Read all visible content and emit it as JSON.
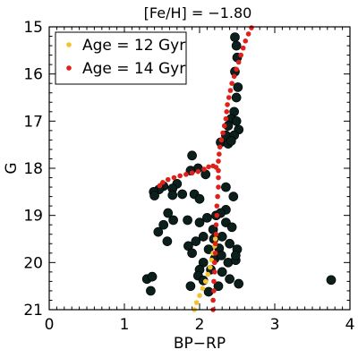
{
  "chart_data": {
    "type": "scatter",
    "title": "[Fe/H] = −1.80",
    "xlabel": "BP−RP",
    "ylabel": "G",
    "xlim": [
      0,
      4
    ],
    "ylim": [
      21,
      15
    ],
    "y_inverted": true,
    "xticks": [
      "0",
      "1",
      "2",
      "3",
      "4"
    ],
    "yticks": [
      "15",
      "16",
      "17",
      "18",
      "19",
      "20",
      "21"
    ],
    "legend": {
      "placement": "top-left",
      "entries": [
        {
          "label": "Age = 12 Gyr",
          "color": "#f2c230"
        },
        {
          "label": "Age = 14 Gyr",
          "color": "#e0201a"
        }
      ]
    },
    "series": [
      {
        "name": "Age = 12 Gyr",
        "kind": "isochrone",
        "color": "#f2c230",
        "points": [
          [
            1.93,
            21.0
          ],
          [
            1.96,
            20.85
          ],
          [
            2.0,
            20.7
          ],
          [
            2.04,
            20.55
          ],
          [
            2.08,
            20.4
          ],
          [
            2.11,
            20.25
          ],
          [
            2.14,
            20.1
          ],
          [
            2.16,
            19.95
          ],
          [
            2.18,
            19.8
          ],
          [
            2.2,
            19.65
          ],
          [
            2.21,
            19.5
          ]
        ]
      },
      {
        "name": "Age = 14 Gyr",
        "kind": "isochrone",
        "color": "#e0201a",
        "points": [
          [
            2.18,
            21.0
          ],
          [
            2.18,
            20.8
          ],
          [
            2.19,
            20.6
          ],
          [
            2.19,
            20.4
          ],
          [
            2.2,
            20.2
          ],
          [
            2.2,
            20.0
          ],
          [
            2.21,
            19.8
          ],
          [
            2.21,
            19.6
          ],
          [
            2.22,
            19.4
          ],
          [
            2.22,
            19.2
          ],
          [
            2.23,
            19.0
          ],
          [
            2.23,
            18.8
          ],
          [
            2.24,
            18.6
          ],
          [
            2.25,
            18.4
          ],
          [
            2.25,
            18.2
          ],
          [
            2.25,
            18.05
          ],
          [
            2.22,
            17.98
          ],
          [
            2.18,
            17.95
          ],
          [
            2.12,
            17.97
          ],
          [
            2.06,
            18.02
          ],
          [
            1.98,
            18.07
          ],
          [
            1.9,
            18.1
          ],
          [
            1.82,
            18.13
          ],
          [
            1.74,
            18.16
          ],
          [
            1.66,
            18.2
          ],
          [
            1.58,
            18.24
          ],
          [
            1.51,
            18.3
          ],
          [
            1.47,
            18.37
          ],
          [
            2.25,
            17.85
          ],
          [
            2.26,
            17.7
          ],
          [
            2.27,
            17.55
          ],
          [
            2.29,
            17.4
          ],
          [
            2.31,
            17.25
          ],
          [
            2.33,
            17.1
          ],
          [
            2.35,
            16.95
          ],
          [
            2.36,
            16.8
          ],
          [
            2.37,
            16.65
          ],
          [
            2.39,
            16.5
          ],
          [
            2.41,
            16.35
          ],
          [
            2.43,
            16.2
          ],
          [
            2.46,
            16.05
          ],
          [
            2.49,
            15.9
          ],
          [
            2.52,
            15.75
          ],
          [
            2.55,
            15.6
          ],
          [
            2.58,
            15.45
          ],
          [
            2.61,
            15.3
          ],
          [
            2.65,
            15.15
          ],
          [
            2.69,
            15.02
          ]
        ]
      },
      {
        "name": "",
        "kind": "stars",
        "color": "#0b1f1d",
        "points": [
          [
            2.47,
            15.22
          ],
          [
            2.49,
            15.4
          ],
          [
            2.5,
            15.65
          ],
          [
            2.47,
            15.95
          ],
          [
            2.51,
            16.28
          ],
          [
            2.49,
            16.5
          ],
          [
            2.46,
            16.8
          ],
          [
            2.42,
            16.95
          ],
          [
            2.49,
            17.0
          ],
          [
            2.38,
            17.1
          ],
          [
            2.52,
            17.18
          ],
          [
            2.35,
            17.3
          ],
          [
            2.46,
            17.3
          ],
          [
            2.28,
            17.45
          ],
          [
            2.38,
            17.48
          ],
          [
            2.42,
            17.42
          ],
          [
            1.9,
            17.73
          ],
          [
            1.98,
            18.0
          ],
          [
            1.88,
            18.05
          ],
          [
            2.08,
            18.13
          ],
          [
            1.7,
            18.33
          ],
          [
            1.64,
            18.43
          ],
          [
            1.52,
            18.38
          ],
          [
            1.46,
            18.45
          ],
          [
            1.39,
            18.5
          ],
          [
            1.4,
            18.58
          ],
          [
            1.64,
            18.57
          ],
          [
            1.77,
            18.55
          ],
          [
            1.93,
            18.55
          ],
          [
            2.0,
            18.65
          ],
          [
            2.35,
            18.4
          ],
          [
            2.45,
            18.6
          ],
          [
            2.35,
            18.88
          ],
          [
            2.22,
            19.0
          ],
          [
            2.28,
            18.95
          ],
          [
            1.58,
            18.95
          ],
          [
            1.65,
            19.1
          ],
          [
            1.52,
            19.2
          ],
          [
            1.45,
            19.35
          ],
          [
            1.57,
            19.55
          ],
          [
            1.84,
            19.1
          ],
          [
            2.0,
            19.15
          ],
          [
            2.1,
            19.05
          ],
          [
            2.18,
            19.3
          ],
          [
            2.35,
            19.15
          ],
          [
            2.43,
            19.25
          ],
          [
            2.3,
            19.45
          ],
          [
            2.19,
            19.5
          ],
          [
            2.05,
            19.45
          ],
          [
            1.95,
            19.55
          ],
          [
            2.12,
            19.72
          ],
          [
            2.26,
            19.7
          ],
          [
            2.4,
            19.6
          ],
          [
            2.5,
            19.72
          ],
          [
            2.2,
            19.92
          ],
          [
            2.29,
            19.85
          ],
          [
            2.38,
            20.0
          ],
          [
            2.48,
            19.95
          ],
          [
            2.05,
            20.0
          ],
          [
            1.85,
            19.65
          ],
          [
            1.9,
            19.8
          ],
          [
            2.0,
            20.15
          ],
          [
            1.98,
            20.28
          ],
          [
            2.15,
            20.15
          ],
          [
            2.3,
            20.2
          ],
          [
            2.4,
            20.35
          ],
          [
            2.52,
            20.45
          ],
          [
            2.25,
            20.5
          ],
          [
            1.3,
            20.35
          ],
          [
            1.35,
            20.6
          ],
          [
            1.88,
            20.5
          ],
          [
            2.05,
            20.38
          ],
          [
            3.75,
            20.37
          ],
          [
            1.37,
            20.3
          ],
          [
            2.12,
            20.62
          ],
          [
            2.48,
            19.85
          ]
        ]
      }
    ]
  }
}
